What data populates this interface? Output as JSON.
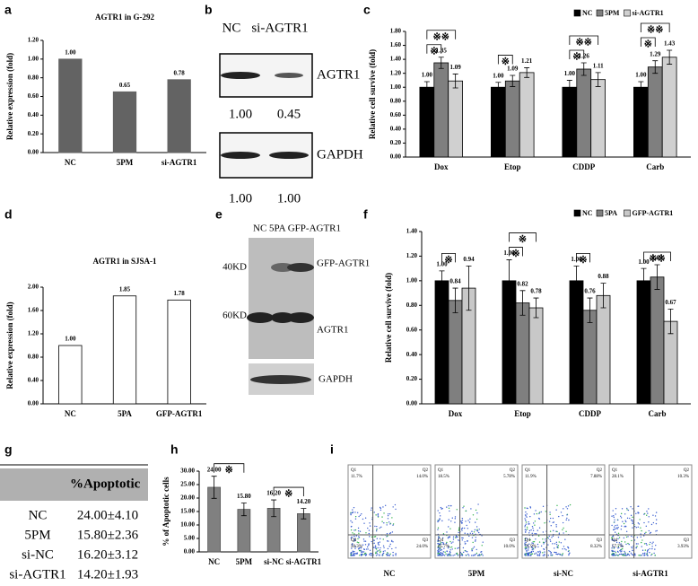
{
  "chart_data": [
    {
      "panel": "a",
      "type": "bar",
      "title": "AGTR1 in G-292",
      "y_label": "Relative expression (fold)",
      "categories": [
        "NC",
        "5PM",
        "si-AGTR1"
      ],
      "values": [
        1.0,
        0.65,
        0.78
      ],
      "value_labels": [
        "1.00",
        "0.65",
        "0.78"
      ],
      "color": "#636363",
      "stroke": "#636363",
      "ylim": [
        0,
        1.2
      ],
      "yticks": [
        {
          "value": 0,
          "label": "0.00"
        },
        {
          "value": 0.2,
          "label": "0.20"
        },
        {
          "value": 0.4,
          "label": "0.40"
        },
        {
          "value": 0.6,
          "label": "0.60"
        },
        {
          "value": 0.8,
          "label": "0.80"
        },
        {
          "value": 1.0,
          "label": "1.00"
        },
        {
          "value": 1.2,
          "label": "1.20"
        }
      ]
    },
    {
      "panel": "c",
      "type": "bar",
      "y_label": "Relative cell survive (fold)",
      "legend": "top-right",
      "categories": [
        "Dox",
        "Etop",
        "CDDP",
        "Carb"
      ],
      "series": [
        {
          "name": "NC",
          "color": "#000000",
          "values": [
            1.0,
            1.0,
            1.0,
            1.0
          ],
          "value_labels": [
            "1.00",
            "1.00",
            "1.00",
            "1.00"
          ],
          "errors": [
            0.08,
            0.07,
            0.1,
            0.08
          ]
        },
        {
          "name": "5PM",
          "color": "#7f7f7f",
          "values": [
            1.35,
            1.09,
            1.26,
            1.29
          ],
          "value_labels": [
            "1.35",
            "1.09",
            "1.26",
            "1.29"
          ],
          "errors": [
            0.08,
            0.08,
            0.09,
            0.09
          ]
        },
        {
          "name": "si-AGTR1",
          "color": "#d0d0d0",
          "values": [
            1.09,
            1.21,
            1.11,
            1.43
          ],
          "value_labels": [
            "1.09",
            "1.21",
            "1.11",
            "1.43"
          ],
          "errors": [
            0.1,
            0.07,
            0.1,
            0.1
          ]
        }
      ],
      "ylim": [
        0,
        1.8
      ],
      "yticks": [
        {
          "value": 0,
          "label": "0.00"
        },
        {
          "value": 0.2,
          "label": "0.20"
        },
        {
          "value": 0.4,
          "label": "0.40"
        },
        {
          "value": 0.6,
          "label": "0.60"
        },
        {
          "value": 0.8,
          "label": "0.80"
        },
        {
          "value": 1.0,
          "label": "1.00"
        },
        {
          "value": 1.2,
          "label": "1.20"
        },
        {
          "value": 1.4,
          "label": "1.40"
        },
        {
          "value": 1.6,
          "label": "1.60"
        },
        {
          "value": 1.8,
          "label": "1.80"
        }
      ],
      "annotations": [
        {
          "text": "※",
          "category": "Dox",
          "between": [
            "NC",
            "5PM"
          ]
        },
        {
          "text": "※※",
          "category": "Dox",
          "between": [
            "NC",
            "si-AGTR1"
          ]
        },
        {
          "text": "※",
          "category": "Etop",
          "between": [
            "NC",
            "5PM"
          ]
        },
        {
          "text": "※",
          "category": "CDDP",
          "between": [
            "NC",
            "5PM"
          ]
        },
        {
          "text": "※※",
          "category": "CDDP",
          "between": [
            "NC",
            "si-AGTR1"
          ]
        },
        {
          "text": "※",
          "category": "Carb",
          "between": [
            "NC",
            "5PM"
          ]
        },
        {
          "text": "※※",
          "category": "Carb",
          "between": [
            "NC",
            "si-AGTR1"
          ]
        }
      ]
    },
    {
      "panel": "d",
      "type": "bar",
      "title": "AGTR1 in SJSA-1",
      "y_label": "Relative expression (fold)",
      "categories": [
        "NC",
        "5PA",
        "GFP-AGTR1"
      ],
      "values": [
        1.0,
        1.85,
        1.78
      ],
      "value_labels": [
        "1.00",
        "1.85",
        "1.78"
      ],
      "color": "#ffffff",
      "stroke": "#000000",
      "ylim": [
        0,
        2.0
      ],
      "yticks": [
        {
          "value": 0,
          "label": "0.00"
        },
        {
          "value": 0.4,
          "label": "0.40"
        },
        {
          "value": 0.8,
          "label": "0.80"
        },
        {
          "value": 1.2,
          "label": "1.20"
        },
        {
          "value": 1.6,
          "label": "1.60"
        },
        {
          "value": 2.0,
          "label": "2.00"
        }
      ]
    },
    {
      "panel": "f",
      "type": "bar",
      "y_label": "Relative cell survive (fold)",
      "legend": "top-right",
      "categories": [
        "Dox",
        "Etop",
        "CDDP",
        "Carb"
      ],
      "series": [
        {
          "name": "NC",
          "color": "#000000",
          "values": [
            1.0,
            1.0,
            1.0,
            1.0
          ],
          "value_labels": [
            "1.00",
            "1.00",
            "1.00",
            "1.00"
          ],
          "errors": [
            0.08,
            0.17,
            0.12,
            0.1
          ]
        },
        {
          "name": "5PA",
          "color": "#7f7f7f",
          "values": [
            0.84,
            0.82,
            0.76,
            1.03
          ],
          "value_labels": [
            "0.84",
            "0.82",
            "0.76",
            "1.03"
          ],
          "errors": [
            0.1,
            0.1,
            0.1,
            0.1
          ]
        },
        {
          "name": "GFP-AGTR1",
          "color": "#c8c8c8",
          "values": [
            0.94,
            0.78,
            0.88,
            0.67
          ],
          "value_labels": [
            "0.94",
            "0.78",
            "0.88",
            "0.67"
          ],
          "errors": [
            0.18,
            0.08,
            0.1,
            0.1
          ]
        }
      ],
      "ylim": [
        0,
        1.4
      ],
      "yticks": [
        {
          "value": 0,
          "label": "0.00"
        },
        {
          "value": 0.2,
          "label": "0.20"
        },
        {
          "value": 0.4,
          "label": "0.40"
        },
        {
          "value": 0.6,
          "label": "0.60"
        },
        {
          "value": 0.8,
          "label": "0.80"
        },
        {
          "value": 1.0,
          "label": "1.00"
        },
        {
          "value": 1.2,
          "label": "1.20"
        },
        {
          "value": 1.4,
          "label": "1.40"
        }
      ],
      "annotations": [
        {
          "text": "※",
          "category": "Dox",
          "between": [
            "NC",
            "5PA"
          ]
        },
        {
          "text": "※",
          "category": "Etop",
          "between": [
            "NC",
            "5PA"
          ]
        },
        {
          "text": "※",
          "category": "Etop",
          "between": [
            "NC",
            "GFP-AGTR1"
          ]
        },
        {
          "text": "※",
          "category": "CDDP",
          "between": [
            "NC",
            "5PA"
          ]
        },
        {
          "text": "※※",
          "category": "Carb",
          "between": [
            "NC",
            "GFP-AGTR1"
          ]
        }
      ]
    },
    {
      "panel": "h",
      "type": "bar",
      "y_label": "% of Apoptotic cells",
      "categories": [
        "NC",
        "5PM",
        "si-NC",
        "si-AGTR1"
      ],
      "values": [
        24.0,
        15.8,
        16.2,
        14.2
      ],
      "value_labels": [
        "24.00",
        "15.80",
        "16.20",
        "14.20"
      ],
      "errors": [
        4.1,
        2.36,
        3.12,
        1.93
      ],
      "color": "#808080",
      "stroke": "#555555",
      "ylim": [
        0,
        30
      ],
      "yticks": [
        {
          "value": 0,
          "label": "0.00"
        },
        {
          "value": 5,
          "label": "5.00"
        },
        {
          "value": 10,
          "label": "10.00"
        },
        {
          "value": 15,
          "label": "15.00"
        },
        {
          "value": 20,
          "label": "20.00"
        },
        {
          "value": 25,
          "label": "25.00"
        },
        {
          "value": 30,
          "label": "30.00"
        }
      ],
      "annotations": [
        {
          "text": "※",
          "between": [
            "NC",
            "5PM"
          ]
        },
        {
          "text": "※",
          "between": [
            "si-NC",
            "si-AGTR1"
          ]
        }
      ]
    }
  ],
  "blot_b": {
    "panel": "b",
    "lanes": [
      "NC",
      "si-AGTR1"
    ],
    "bands": [
      {
        "name": "AGTR1",
        "values": [
          "1.00",
          "0.45"
        ]
      },
      {
        "name": "GAPDH",
        "values": [
          "1.00",
          "1.00"
        ]
      }
    ]
  },
  "blot_e": {
    "panel": "e",
    "lanes": "NC 5PA GFP-AGTR1",
    "markers": [
      "40KD",
      "60KD"
    ],
    "bands": [
      "GFP-AGTR1",
      "AGTR1"
    ],
    "loading": "GAPDH"
  },
  "table_g": {
    "panel": "g",
    "header": "%Apoptotic",
    "rows": [
      [
        "NC",
        "24.00±4.10"
      ],
      [
        "5PM",
        "15.80±2.36"
      ],
      [
        "si-NC",
        "16.20±3.12"
      ],
      [
        "si-AGTR1",
        "14.20±1.93"
      ]
    ]
  },
  "flow_i": {
    "panel": "i",
    "plots": [
      {
        "label": "NC",
        "quadrants": [
          {
            "name": "Q1",
            "value": "11.7%"
          },
          {
            "name": "Q2",
            "value": "14.0%"
          },
          {
            "name": "Q3",
            "value": "24.0%"
          },
          {
            "name": "Q4",
            "value": "50.3%"
          }
        ]
      },
      {
        "label": "5PM",
        "quadrants": [
          {
            "name": "Q1",
            "value": "18.5%"
          },
          {
            "name": "Q2",
            "value": "5.78%"
          },
          {
            "name": "Q3",
            "value": "10.0%"
          },
          {
            "name": "Q4",
            "value": "65.7%"
          }
        ]
      },
      {
        "label": "si-NC",
        "quadrants": [
          {
            "name": "Q1",
            "value": "11.9%"
          },
          {
            "name": "Q2",
            "value": "7.88%"
          },
          {
            "name": "Q3",
            "value": "8.32%"
          },
          {
            "name": "Q4",
            "value": "71.9%"
          }
        ]
      },
      {
        "label": "si-AGTR1",
        "quadrants": [
          {
            "name": "Q1",
            "value": "28.1%"
          },
          {
            "name": "Q2",
            "value": "10.3%"
          },
          {
            "name": "Q3",
            "value": "3.93%"
          },
          {
            "name": "Q4",
            "value": "57.7%"
          }
        ]
      }
    ]
  }
}
